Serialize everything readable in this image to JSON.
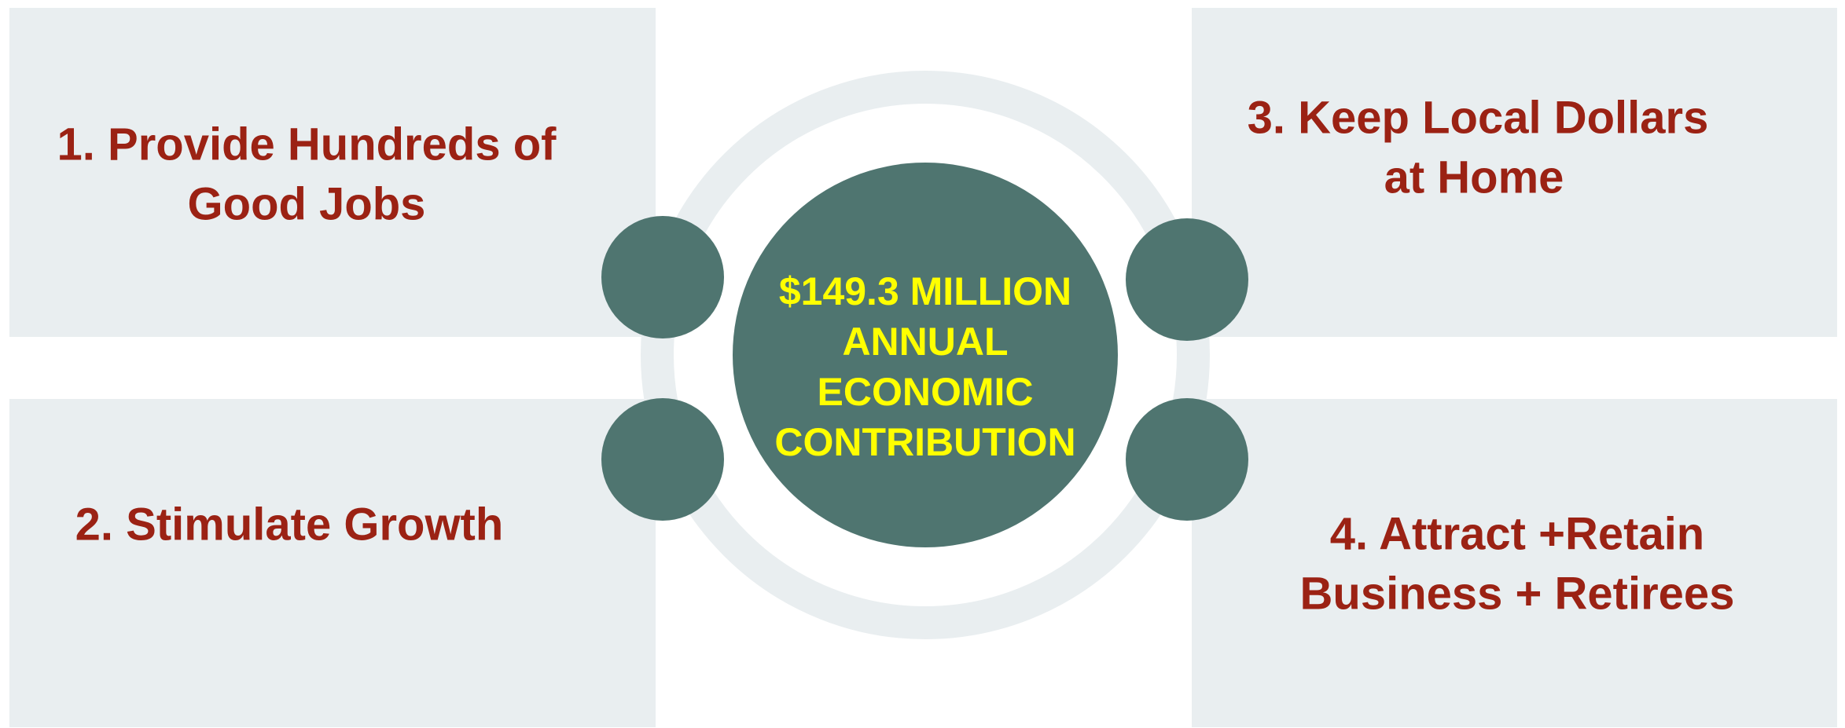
{
  "center": {
    "lines": [
      "$149.3 MILLION",
      "ANNUAL",
      "ECONOMIC",
      "CONTRIBUTION"
    ]
  },
  "items": [
    {
      "lines": [
        "1. Provide Hundreds of",
        "Good Jobs"
      ]
    },
    {
      "lines": [
        "2. Stimulate Growth"
      ]
    },
    {
      "lines": [
        "3. Keep Local Dollars",
        "at Home"
      ]
    },
    {
      "lines": [
        "4. Attract +Retain",
        "Business + Retirees"
      ]
    }
  ]
}
